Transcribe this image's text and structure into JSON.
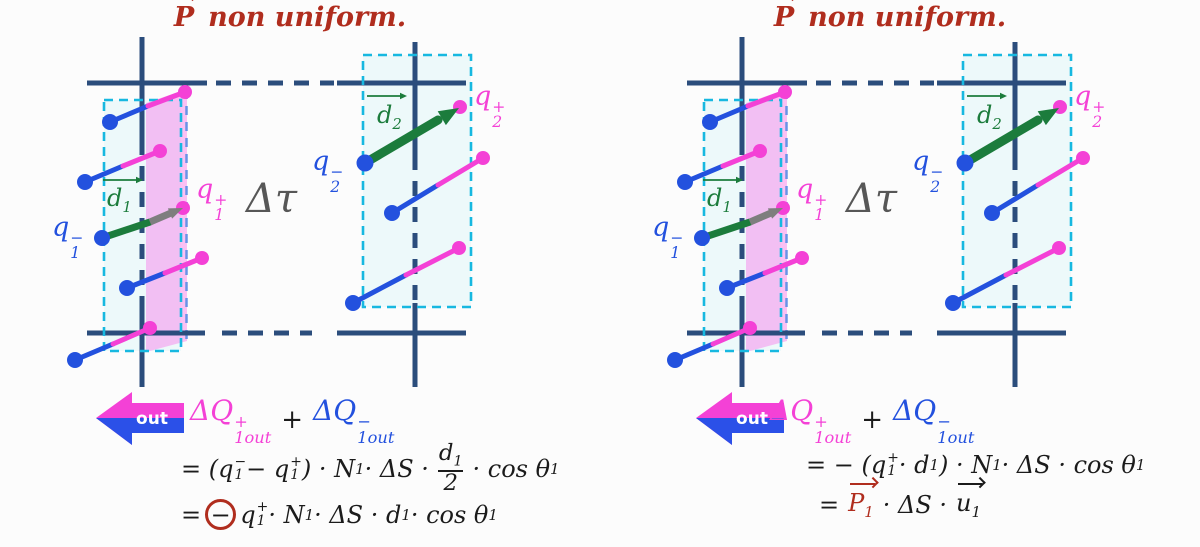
{
  "out_badge": "out",
  "colors": {
    "grid_dark_blue": "#2b4d7c",
    "dipole_blue": "#2351de",
    "dipole_magenta": "#f441d6",
    "displacement_green": "#1c7c3c",
    "cell_border_cyan": "#17b8e0",
    "cell_fill_light_cyan": "#edf9fa",
    "outflow_strip_pink": "#f878ec",
    "gray_arrow": "#7e7e7e",
    "title_dark_red": "#b02d1e",
    "delta_tau_gray": "#575757"
  },
  "panel_left": {
    "title": {
      "vector": "P",
      "text": "non uniform."
    },
    "labels": {
      "q1_minus": "q_{1}^{−}",
      "q1_plus": "q_{1}^{+}",
      "q2_minus": "q_{2}^{−}",
      "q2_plus": "q_{2}^{+}",
      "d1": "d_{1}",
      "d2": "d_{2}",
      "delta_tau": "Δτ"
    },
    "sum": {
      "pos": "ΔQ_{1out}^{+}",
      "plus": "+",
      "neg": "ΔQ_{1out}^{−}"
    },
    "equations": {
      "line1": "= (q_{1}^{−} − q_{1}^{+}) · N_{1} · ΔS · FRAC{d_{1}}{2} · cos θ_{1}",
      "line2": "= CIRC{−} q_{1}^{+} · N_{1} · ΔS · d_{1} · cos θ_{1}"
    }
  },
  "panel_right": {
    "title": {
      "vector": "P",
      "text": "non uniform."
    },
    "labels": {
      "q1_minus": "q_{1}^{−}",
      "q1_plus": "q_{1}^{+}",
      "q2_minus": "q_{2}^{−}",
      "q2_plus": "q_{2}^{+}",
      "d1": "d_{1}",
      "d2": "d_{2}",
      "delta_tau": "Δτ"
    },
    "sum": {
      "pos": "ΔQ_{1out}^{+}",
      "plus": "+",
      "neg": "ΔQ_{1out}^{−}"
    },
    "equations": {
      "line1": "= − (q_{1}^{+} · d_{1}) · N_{1} · ΔS · cos θ_{1}",
      "line2": {
        "eq": "=",
        "p1": "P_{1}",
        "mid": "· ΔS ·",
        "u1": "u_{1}"
      }
    }
  }
}
